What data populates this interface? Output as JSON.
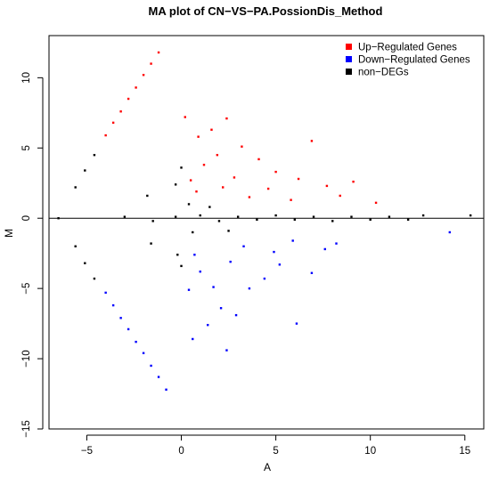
{
  "chart_data": {
    "type": "scatter",
    "title": "MA plot of CN−VS−PA.PossionDis_Method",
    "xlabel": "A",
    "ylabel": "M",
    "xlim": [
      -7,
      16
    ],
    "ylim": [
      -15,
      13
    ],
    "xticks": [
      -5,
      0,
      5,
      10,
      15
    ],
    "yticks": [
      10,
      5,
      0,
      -5,
      -10,
      -15
    ],
    "xtick_labels": [
      "−5",
      "0",
      "5",
      "10",
      "15"
    ],
    "ytick_labels": [
      "10",
      "5",
      "0",
      "−5",
      "−10",
      "−15"
    ],
    "grid": false,
    "reference_line": 0,
    "legend_position": "top-right",
    "series": [
      {
        "name": "Up−Regulated Genes",
        "color": "#ff0000",
        "points": [
          [
            -4.0,
            5.9
          ],
          [
            -3.6,
            6.8
          ],
          [
            -3.2,
            7.6
          ],
          [
            -2.8,
            8.5
          ],
          [
            -2.4,
            9.3
          ],
          [
            -2.0,
            10.2
          ],
          [
            -1.6,
            11.0
          ],
          [
            -1.2,
            11.8
          ],
          [
            0.2,
            7.2
          ],
          [
            0.9,
            5.8
          ],
          [
            1.6,
            6.3
          ],
          [
            2.4,
            7.1
          ],
          [
            3.2,
            5.1
          ],
          [
            4.1,
            4.2
          ],
          [
            5.0,
            3.3
          ],
          [
            6.2,
            2.8
          ],
          [
            6.9,
            5.5
          ],
          [
            7.7,
            2.3
          ],
          [
            8.4,
            1.6
          ],
          [
            9.1,
            2.6
          ],
          [
            10.3,
            1.1
          ],
          [
            1.2,
            3.8
          ],
          [
            2.8,
            2.9
          ],
          [
            4.6,
            2.1
          ],
          [
            0.5,
            2.7
          ],
          [
            3.6,
            1.5
          ],
          [
            5.8,
            1.3
          ],
          [
            1.9,
            4.5
          ],
          [
            2.2,
            2.2
          ],
          [
            0.8,
            1.9
          ]
        ]
      },
      {
        "name": "Down−Regulated Genes",
        "color": "#0000ff",
        "points": [
          [
            -4.0,
            -5.3
          ],
          [
            -3.6,
            -6.2
          ],
          [
            -3.2,
            -7.1
          ],
          [
            -2.8,
            -7.9
          ],
          [
            -2.4,
            -8.8
          ],
          [
            -2.0,
            -9.6
          ],
          [
            -1.6,
            -10.5
          ],
          [
            -1.2,
            -11.3
          ],
          [
            -0.8,
            -12.2
          ],
          [
            0.6,
            -8.6
          ],
          [
            1.4,
            -7.6
          ],
          [
            2.1,
            -6.4
          ],
          [
            2.9,
            -6.9
          ],
          [
            3.6,
            -5.0
          ],
          [
            4.4,
            -4.3
          ],
          [
            5.2,
            -3.3
          ],
          [
            6.1,
            -7.5
          ],
          [
            6.9,
            -3.9
          ],
          [
            7.6,
            -2.2
          ],
          [
            8.2,
            -1.8
          ],
          [
            14.2,
            -1.0
          ],
          [
            1.0,
            -3.8
          ],
          [
            2.6,
            -3.1
          ],
          [
            4.9,
            -2.4
          ],
          [
            0.4,
            -5.1
          ],
          [
            3.3,
            -2.0
          ],
          [
            5.9,
            -1.6
          ],
          [
            1.7,
            -4.9
          ],
          [
            2.4,
            -9.4
          ],
          [
            0.7,
            -2.6
          ]
        ]
      },
      {
        "name": "non−DEGs",
        "color": "#000000",
        "points": [
          [
            -6.5,
            0.0
          ],
          [
            -5.6,
            2.2
          ],
          [
            -5.1,
            3.4
          ],
          [
            -4.6,
            4.5
          ],
          [
            -5.6,
            -2.0
          ],
          [
            -5.1,
            -3.2
          ],
          [
            -4.6,
            -4.3
          ],
          [
            -3.0,
            0.1
          ],
          [
            -1.5,
            -0.2
          ],
          [
            -0.3,
            0.1
          ],
          [
            1.0,
            0.2
          ],
          [
            2.0,
            -0.2
          ],
          [
            3.0,
            0.1
          ],
          [
            4.0,
            -0.1
          ],
          [
            5.0,
            0.2
          ],
          [
            6.0,
            -0.1
          ],
          [
            7.0,
            0.1
          ],
          [
            8.0,
            -0.2
          ],
          [
            9.0,
            0.1
          ],
          [
            10.0,
            -0.1
          ],
          [
            11.0,
            0.1
          ],
          [
            12.0,
            -0.1
          ],
          [
            12.8,
            0.2
          ],
          [
            15.3,
            0.2
          ],
          [
            0.0,
            3.6
          ],
          [
            0.0,
            -3.4
          ],
          [
            -0.3,
            2.4
          ],
          [
            -0.2,
            -2.6
          ],
          [
            0.4,
            1.0
          ],
          [
            0.6,
            -1.0
          ],
          [
            1.5,
            0.8
          ],
          [
            2.5,
            -0.9
          ],
          [
            -1.8,
            1.6
          ],
          [
            -1.6,
            -1.8
          ]
        ]
      }
    ]
  }
}
